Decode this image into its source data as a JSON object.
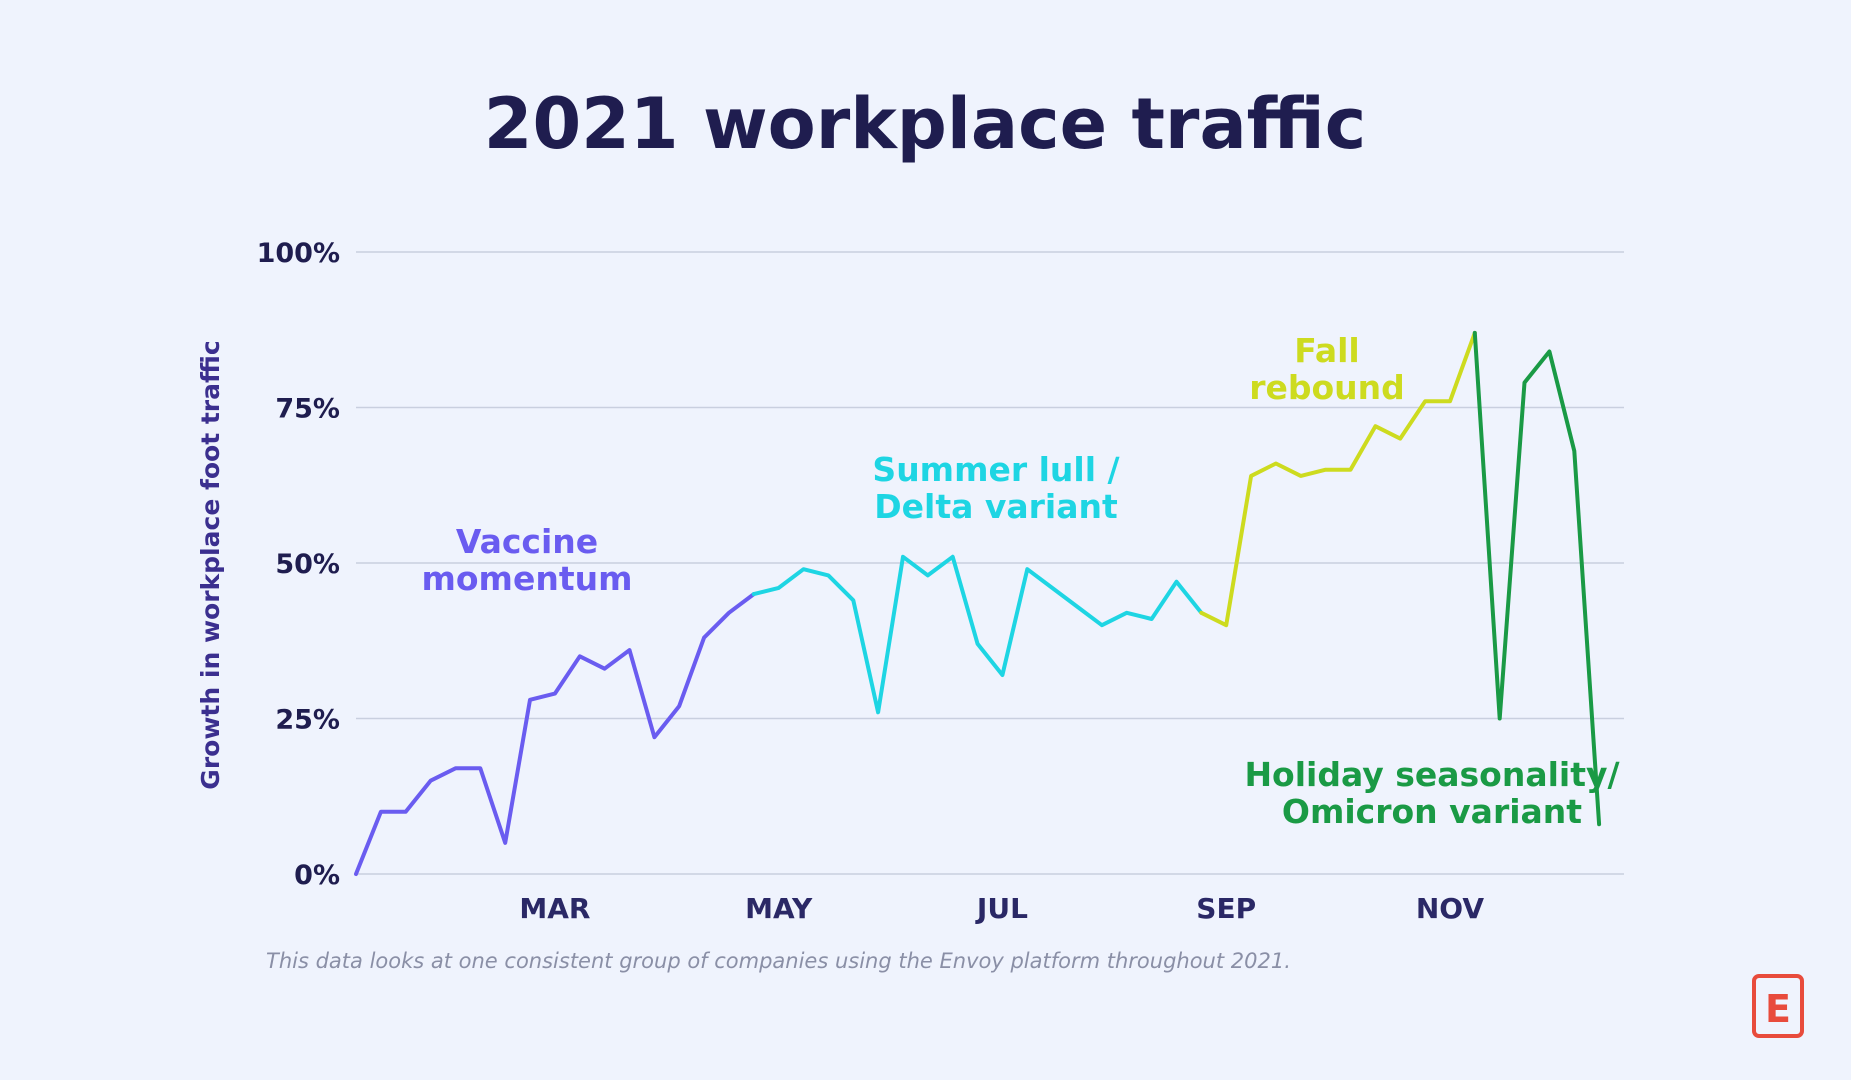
{
  "chart_data": {
    "type": "line",
    "title": "2021 workplace traffic",
    "ylabel": "Growth in workplace foot traffic",
    "xlabel": "",
    "ylim": [
      0,
      100
    ],
    "y_ticks": [
      "0%",
      "25%",
      "50%",
      "75%",
      "100%"
    ],
    "y_tick_values": [
      0,
      25,
      50,
      75,
      100
    ],
    "x_ticks": [
      "MAR",
      "MAY",
      "JUL",
      "SEP",
      "NOV"
    ],
    "x_tick_weeks": [
      8,
      17,
      26,
      35,
      44
    ],
    "x_range": [
      0,
      51
    ],
    "grid": true,
    "footnote": "This data looks at one consistent group of companies using the Envoy platform throughout 2021.",
    "weekly_growth_pct": [
      0,
      10,
      10,
      15,
      17,
      17,
      5,
      28,
      29,
      35,
      33,
      36,
      22,
      27,
      38,
      42,
      45,
      46,
      49,
      48,
      44,
      26,
      51,
      48,
      51,
      37,
      32,
      49,
      46,
      43,
      40,
      42,
      41,
      47,
      42,
      40,
      64,
      66,
      64,
      65,
      65,
      72,
      70,
      76,
      76,
      87,
      25,
      79,
      84,
      68,
      8
    ],
    "series": [
      {
        "name": "Vaccine momentum",
        "start": 0,
        "end": 16,
        "color": "#6a5cf0"
      },
      {
        "name": "Summer lull / Delta variant",
        "start": 16,
        "end": 34,
        "color": "#1ed5e3"
      },
      {
        "name": "Fall rebound",
        "start": 34,
        "end": 45,
        "color": "#cddb1f"
      },
      {
        "name": "Holiday seasonality/ Omicron variant",
        "start": 45,
        "end": 50,
        "color": "#1a9a45"
      }
    ],
    "annotations": [
      {
        "lines": [
          "Vaccine",
          "momentum"
        ],
        "color": "#6a5cf0"
      },
      {
        "lines": [
          "Summer lull /",
          "Delta variant"
        ],
        "color": "#1ed5e3"
      },
      {
        "lines": [
          "Fall",
          "rebound"
        ],
        "color": "#cddb1f"
      },
      {
        "lines": [
          "Holiday seasonality/",
          "Omicron variant"
        ],
        "color": "#1a9a45"
      }
    ]
  },
  "logo": {
    "letter": "E",
    "color": "#e84b3c",
    "icon": "envoy-logo-icon"
  }
}
